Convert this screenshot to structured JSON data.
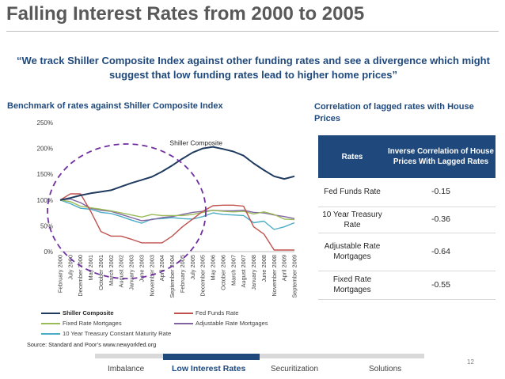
{
  "slide": {
    "title": "Falling Interest Rates from 2000 to 2005",
    "quote": "“We track Shiller Composite Index against other funding rates and see a divergence which might suggest that low funding rates lead to higher home prices”",
    "chart_heading": "Benchmark of rates against Shiller Composite Index",
    "source": "Source: Standard and Poor’s www.newyorkfed.org",
    "page_number": "12"
  },
  "correlation": {
    "heading": "Correlation of lagged rates with House Prices",
    "header_rates": "Rates",
    "header_corr": "Inverse Correlation of House Prices With Lagged Rates",
    "rows": [
      {
        "rate": "Fed Funds Rate",
        "value": "-0.15"
      },
      {
        "rate": "10 Year Treasury Rate",
        "value": "-0.36"
      },
      {
        "rate": "Adjustable Rate Mortgages",
        "value": "-0.64"
      },
      {
        "rate": "Fixed Rate Mortgages",
        "value": "-0.55"
      }
    ]
  },
  "nav": {
    "items": [
      "Imbalance",
      "Low Interest Rates",
      "Securitization",
      "Solutions"
    ],
    "active": "Low Interest Rates"
  },
  "colors": {
    "title_gray": "#595959",
    "navy": "#1f497d",
    "shiller": "#1f3a5f",
    "fed_funds": "#c0504d",
    "fixed": "#9bbb59",
    "adjustable": "#8064a2",
    "treasury": "#4bacc6",
    "ellipse": "#7030a0"
  },
  "chart_data": {
    "type": "line",
    "title": "",
    "series_label": "Shiller Composite",
    "ylim": [
      0,
      250
    ],
    "y_ticks": [
      "0%",
      "50%",
      "100%",
      "150%",
      "200%",
      "250%"
    ],
    "x_labels": [
      "February 2000",
      "July 2000",
      "December 2000",
      "May 2001",
      "October 2001",
      "March 2002",
      "August 2002",
      "January 2003",
      "June 2003",
      "November 2003",
      "April 2004",
      "September 2004",
      "February 2005",
      "July 2005",
      "December 2005",
      "May 2006",
      "October 2006",
      "March 2007",
      "August 2007",
      "January 2008",
      "June 2008",
      "November 2008",
      "April 2009",
      "September 2009"
    ],
    "series": [
      {
        "name": "Shiller Composite",
        "color": "#1f3a5f",
        "width": 2,
        "values": [
          100,
          104,
          109,
          113,
          116,
          119,
          126,
          133,
          139,
          145,
          155,
          167,
          180,
          192,
          200,
          203,
          199,
          194,
          186,
          171,
          158,
          146,
          141,
          146
        ]
      },
      {
        "name": "Fed Funds Rate",
        "color": "#c0504d",
        "width": 1.4,
        "values": [
          100,
          112,
          112,
          78,
          39,
          30,
          30,
          24,
          17,
          17,
          17,
          30,
          48,
          63,
          78,
          89,
          90,
          90,
          88,
          48,
          34,
          3,
          3,
          3
        ]
      },
      {
        "name": "Fixed Rate Mortgages",
        "color": "#9bbb59",
        "width": 1.4,
        "values": [
          100,
          97,
          88,
          85,
          82,
          79,
          75,
          71,
          67,
          72,
          70,
          70,
          70,
          72,
          76,
          80,
          78,
          77,
          78,
          73,
          77,
          72,
          63,
          62
        ]
      },
      {
        "name": "Adjustable Rate Mortgages",
        "color": "#8064a2",
        "width": 1.4,
        "values": [
          100,
          102,
          95,
          84,
          80,
          78,
          72,
          66,
          60,
          62,
          66,
          68,
          72,
          76,
          78,
          80,
          79,
          79,
          80,
          76,
          75,
          71,
          68,
          64
        ]
      },
      {
        "name": "10 Year Treasury Constant Maturity Rate",
        "color": "#4bacc6",
        "width": 1.4,
        "values": [
          100,
          93,
          84,
          82,
          76,
          74,
          68,
          61,
          55,
          63,
          64,
          66,
          64,
          63,
          68,
          75,
          72,
          71,
          70,
          56,
          59,
          43,
          48,
          56
        ]
      }
    ],
    "legend": [
      {
        "name": "Shiller Composite",
        "color": "#1f3a5f",
        "bold": true
      },
      {
        "name": "Fed Funds Rate",
        "color": "#c0504d",
        "bold": false
      },
      {
        "name": "Fixed Rate Mortgages",
        "color": "#9bbb59",
        "bold": false
      },
      {
        "name": "Adjustable Rate Mortgages",
        "color": "#8064a2",
        "bold": false
      },
      {
        "name": "10 Year Treasury Constant Maturity Rate",
        "color": "#4bacc6",
        "bold": false
      }
    ],
    "grid": false,
    "annotation": "dashed purple ellipse around 2000–2005 period"
  }
}
